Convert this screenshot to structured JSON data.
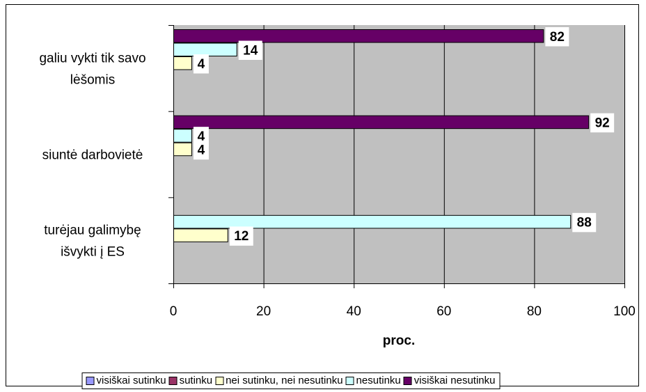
{
  "chart_data": {
    "type": "bar",
    "orientation": "horizontal",
    "categories": [
      "galiu vykti tik savo lėšomis",
      "siuntė darbovietė",
      "turėjau galimybę išvykti į ES"
    ],
    "category_lines": [
      [
        "galiu vykti tik savo",
        "lėšomis"
      ],
      [
        "siuntė darbovietė"
      ],
      [
        "turėjau galimybę",
        "išvykti į ES"
      ]
    ],
    "series": [
      {
        "name": "visiškai sutinku",
        "color": "#9999ff",
        "values": [
          0,
          0,
          0
        ]
      },
      {
        "name": "sutinku",
        "color": "#993366",
        "values": [
          0,
          0,
          0
        ]
      },
      {
        "name": "nei sutinku, nei nesutinku",
        "color": "#ffffcc",
        "values": [
          4,
          4,
          12
        ]
      },
      {
        "name": "nesutinku",
        "color": "#ccffff",
        "values": [
          14,
          4,
          88
        ]
      },
      {
        "name": "visiškai nesutinku",
        "color": "#660066",
        "values": [
          82,
          92,
          0
        ]
      }
    ],
    "xlabel": "proc.",
    "xlim": [
      0,
      100
    ],
    "xticks": [
      0,
      20,
      40,
      60,
      80,
      100
    ],
    "grid": true,
    "plot_background": "#c0c0c0",
    "legend_position": "bottom"
  }
}
